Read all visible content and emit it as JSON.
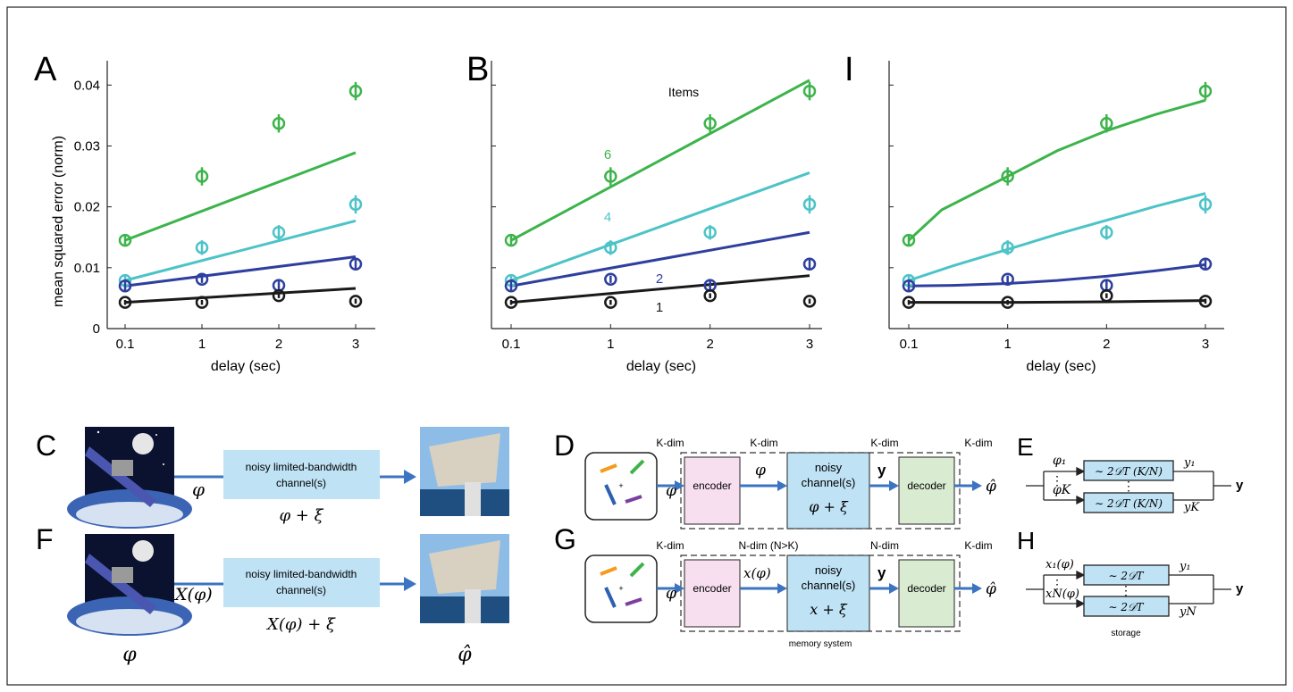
{
  "figure": {
    "panel_letters": [
      "A",
      "B",
      "I",
      "C",
      "D",
      "E",
      "F",
      "G",
      "H"
    ]
  },
  "colors": {
    "items6": "#3cb44b",
    "items4": "#4dc3c8",
    "items2": "#2e3f9e",
    "items1": "#1a1a1a",
    "pink_box": "#f8dff0",
    "blue_box": "#bfe2f5",
    "green_box": "#d9ecd2",
    "arrow": "#3b74c0",
    "bar_green": "#3cb44b",
    "bar_blue": "#2e5fb0",
    "bar_purple": "#7b3fa0",
    "bar_orange": "#f39c1e"
  },
  "chart_data": [
    {
      "type": "scatter",
      "panel": "A",
      "xlabel": "delay (sec)",
      "ylabel": "mean squared error (norm)",
      "x_ticks": [
        "0.1",
        "1",
        "2",
        "3"
      ],
      "y_ticks": [
        "0",
        "0.01",
        "0.02",
        "0.03",
        "0.04"
      ],
      "xlim": [
        0.1,
        3
      ],
      "ylim": [
        0,
        0.044
      ],
      "series": [
        {
          "items": 6,
          "color": "#3cb44b",
          "x": [
            0.1,
            1,
            2,
            3
          ],
          "y": [
            0.0145,
            0.025,
            0.0337,
            0.039
          ],
          "err": [
            0.001,
            0.0015,
            0.0015,
            0.0015
          ],
          "fit_x": [
            0.1,
            3
          ],
          "fit_y": [
            0.0145,
            0.0289
          ]
        },
        {
          "items": 4,
          "color": "#4dc3c8",
          "x": [
            0.1,
            1,
            2,
            3
          ],
          "y": [
            0.0079,
            0.0133,
            0.0158,
            0.0204
          ],
          "err": [
            0.0008,
            0.0012,
            0.0012,
            0.0015
          ],
          "fit_x": [
            0.1,
            3
          ],
          "fit_y": [
            0.0079,
            0.0177
          ]
        },
        {
          "items": 2,
          "color": "#2e3f9e",
          "x": [
            0.1,
            1,
            2,
            3
          ],
          "y": [
            0.007,
            0.0081,
            0.0071,
            0.0106
          ],
          "err": [
            0.0008,
            0.0006,
            0.0008,
            0.0007
          ],
          "fit_x": [
            0.1,
            3
          ],
          "fit_y": [
            0.007,
            0.0118
          ]
        },
        {
          "items": 1,
          "color": "#1a1a1a",
          "x": [
            0.1,
            1,
            2,
            3
          ],
          "y": [
            0.0043,
            0.0043,
            0.0054,
            0.0045
          ],
          "err": [
            0.0004,
            0.0004,
            0.0004,
            0.0004
          ],
          "fit_x": [
            0.1,
            3
          ],
          "fit_y": [
            0.0043,
            0.0066
          ]
        }
      ]
    },
    {
      "type": "scatter",
      "panel": "B",
      "xlabel": "delay (sec)",
      "x_ticks": [
        "0.1",
        "1",
        "2",
        "3"
      ],
      "xlim": [
        0.1,
        3
      ],
      "ylim": [
        0,
        0.044
      ],
      "legend_title": "Items",
      "series": [
        {
          "items": 6,
          "label": "6",
          "color": "#3cb44b",
          "x": [
            0.1,
            1,
            2,
            3
          ],
          "y": [
            0.0145,
            0.025,
            0.0337,
            0.039
          ],
          "err": [
            0.001,
            0.0015,
            0.0015,
            0.0015
          ],
          "fit_x": [
            0.1,
            3
          ],
          "fit_y": [
            0.0145,
            0.0408
          ]
        },
        {
          "items": 4,
          "label": "4",
          "color": "#4dc3c8",
          "x": [
            0.1,
            1,
            2,
            3
          ],
          "y": [
            0.0079,
            0.0133,
            0.0158,
            0.0204
          ],
          "err": [
            0.0008,
            0.0012,
            0.0012,
            0.0015
          ],
          "fit_x": [
            0.1,
            3
          ],
          "fit_y": [
            0.0079,
            0.0256
          ]
        },
        {
          "items": 2,
          "label": "2",
          "color": "#2e3f9e",
          "x": [
            0.1,
            1,
            2,
            3
          ],
          "y": [
            0.007,
            0.0081,
            0.0071,
            0.0106
          ],
          "err": [
            0.0008,
            0.0006,
            0.0008,
            0.0007
          ],
          "fit_x": [
            0.1,
            3
          ],
          "fit_y": [
            0.007,
            0.0158
          ]
        },
        {
          "items": 1,
          "label": "1",
          "color": "#1a1a1a",
          "x": [
            0.1,
            1,
            2,
            3
          ],
          "y": [
            0.0043,
            0.0043,
            0.0054,
            0.0045
          ],
          "err": [
            0.0004,
            0.0004,
            0.0004,
            0.0004
          ],
          "fit_x": [
            0.1,
            3
          ],
          "fit_y": [
            0.0043,
            0.0087
          ]
        }
      ]
    },
    {
      "type": "scatter",
      "panel": "I",
      "xlabel": "delay (sec)",
      "x_ticks": [
        "0.1",
        "1",
        "2",
        "3"
      ],
      "xlim": [
        0.1,
        3
      ],
      "ylim": [
        0,
        0.044
      ],
      "series": [
        {
          "items": 6,
          "color": "#3cb44b",
          "x": [
            0.1,
            1,
            2,
            3
          ],
          "y": [
            0.0145,
            0.025,
            0.0337,
            0.039
          ],
          "err": [
            0.001,
            0.0015,
            0.0015,
            0.0015
          ],
          "fit_x": [
            0.1,
            0.4,
            1,
            1.5,
            2,
            2.5,
            3
          ],
          "fit_y": [
            0.0145,
            0.0195,
            0.025,
            0.0292,
            0.0325,
            0.0352,
            0.0375
          ]
        },
        {
          "items": 4,
          "color": "#4dc3c8",
          "x": [
            0.1,
            1,
            2,
            3
          ],
          "y": [
            0.0079,
            0.0133,
            0.0158,
            0.0204
          ],
          "err": [
            0.0008,
            0.0012,
            0.0012,
            0.0015
          ],
          "fit_x": [
            0.1,
            0.5,
            1,
            1.5,
            2,
            2.5,
            3
          ],
          "fit_y": [
            0.0079,
            0.0103,
            0.013,
            0.0155,
            0.0178,
            0.0201,
            0.0222
          ]
        },
        {
          "items": 2,
          "color": "#2e3f9e",
          "x": [
            0.1,
            1,
            2,
            3
          ],
          "y": [
            0.007,
            0.0081,
            0.0071,
            0.0106
          ],
          "err": [
            0.0008,
            0.0006,
            0.0008,
            0.0007
          ],
          "fit_x": [
            0.1,
            0.5,
            1,
            1.5,
            2,
            2.5,
            3
          ],
          "fit_y": [
            0.007,
            0.0071,
            0.0074,
            0.0079,
            0.0086,
            0.0095,
            0.0105
          ]
        },
        {
          "items": 1,
          "color": "#1a1a1a",
          "x": [
            0.1,
            1,
            2,
            3
          ],
          "y": [
            0.0043,
            0.0043,
            0.0054,
            0.0045
          ],
          "err": [
            0.0004,
            0.0004,
            0.0004,
            0.0004
          ],
          "fit_x": [
            0.1,
            1,
            2,
            3
          ],
          "fit_y": [
            0.0043,
            0.0043,
            0.0044,
            0.0046
          ]
        }
      ]
    }
  ],
  "panel_C": {
    "channel_label_1": "noisy limited-bandwidth",
    "channel_label_2": "channel(s)",
    "input_symbol": "φ",
    "output_formula": "φ + ξ"
  },
  "panel_F": {
    "channel_label_1": "noisy limited-bandwidth",
    "channel_label_2": "channel(s)",
    "input_symbol": "X(φ)",
    "output_formula": "X(φ) + ξ",
    "source_symbol": "φ",
    "estimate_symbol": "φ̂"
  },
  "panel_D": {
    "dims": [
      "K-dim",
      "K-dim",
      "K-dim",
      "K-dim"
    ],
    "encoder": "encoder",
    "channel_1": "noisy",
    "channel_2": "channel(s)",
    "channel_formula": "φ + ξ",
    "decoder": "decoder",
    "sym_in": "φ",
    "sym_mid": "φ",
    "sym_y": "y",
    "sym_out": "φ̂"
  },
  "panel_G": {
    "dims": [
      "K-dim",
      "N-dim (N>K)",
      "N-dim",
      "K-dim"
    ],
    "encoder": "encoder",
    "channel_1": "noisy",
    "channel_2": "channel(s)",
    "channel_formula": "x + ξ",
    "decoder": "decoder",
    "sym_in": "φ",
    "sym_mid": "x(φ)",
    "sym_y": "y",
    "sym_out": "φ̂",
    "caption": "memory system"
  },
  "panel_E": {
    "in_top": "φ₁",
    "in_bottom": "φK",
    "box_top": "∼ 2𝒟T (K/N)",
    "box_bottom": "∼ 2𝒟T (K/N)",
    "out_top": "y₁",
    "out_bottom": "yK",
    "output": "y"
  },
  "panel_H": {
    "in_top": "x₁(φ)",
    "in_bottom": "xN(φ)",
    "box_top": "∼ 2𝒟T",
    "box_bottom": "∼ 2𝒟T",
    "out_top": "y₁",
    "out_bottom": "yN",
    "output": "y",
    "caption": "storage"
  }
}
